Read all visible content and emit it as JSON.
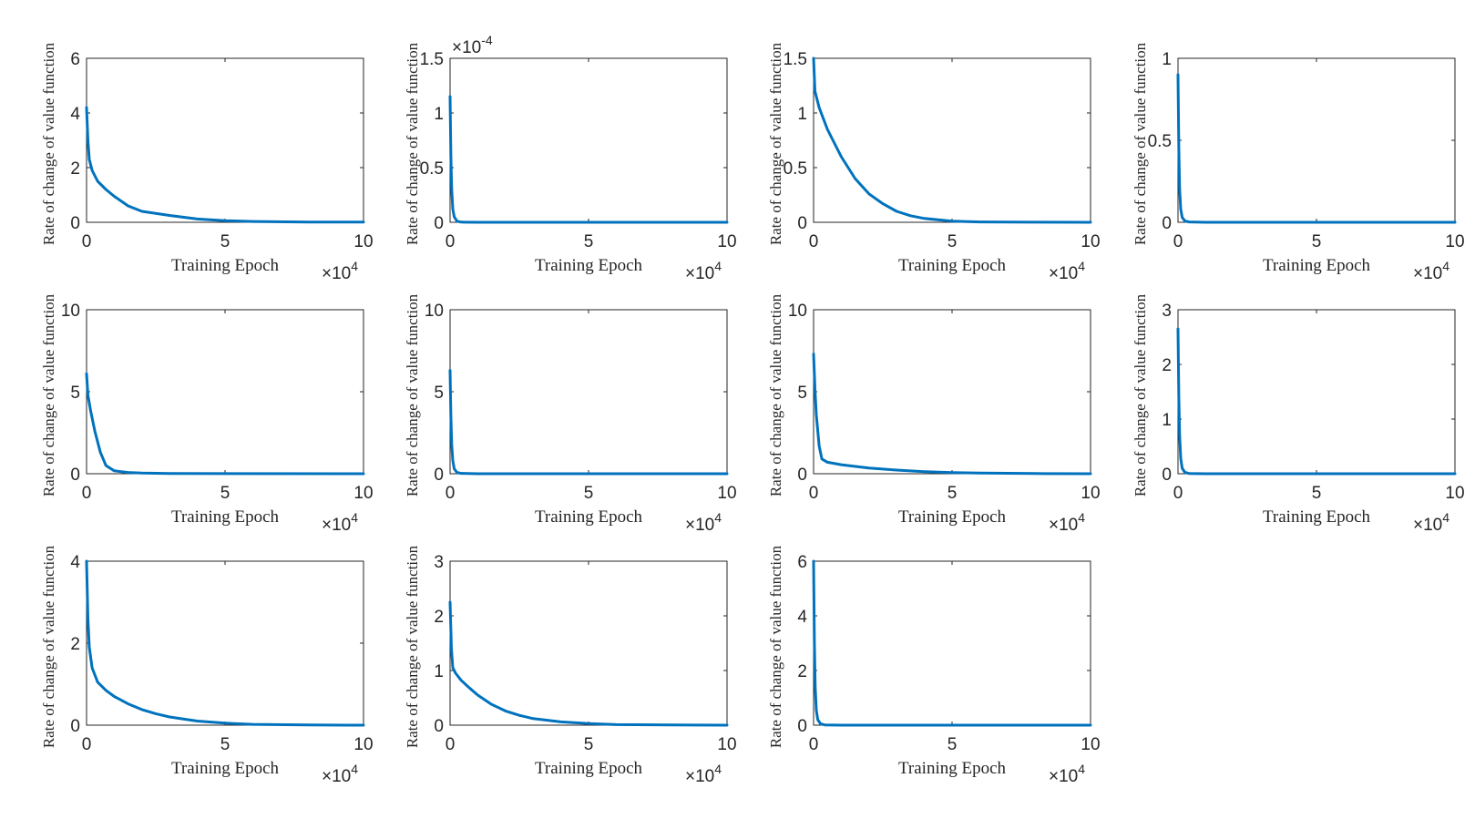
{
  "figure": {
    "line_color": "#0072BD",
    "axis_color": "#262626",
    "background": "#ffffff"
  },
  "chart_data": [
    {
      "type": "line",
      "xlabel": "Training Epoch",
      "ylabel": "Rate of change of value function",
      "x_multiplier": "×10",
      "x_exponent": "4",
      "y_multiplier": "",
      "xlim": [
        0,
        10
      ],
      "ylim": [
        0,
        6
      ],
      "xticks": [
        "0",
        "5",
        "10"
      ],
      "yticks": [
        "0",
        "2",
        "4",
        "6"
      ],
      "series": [
        {
          "x": [
            0,
            0.05,
            0.1,
            0.2,
            0.4,
            0.7,
            1,
            1.5,
            2,
            3,
            4,
            5,
            6,
            8,
            10
          ],
          "y": [
            4.2,
            3.0,
            2.3,
            1.9,
            1.5,
            1.2,
            0.95,
            0.6,
            0.4,
            0.25,
            0.12,
            0.06,
            0.03,
            0.01,
            0.005
          ]
        }
      ]
    },
    {
      "type": "line",
      "xlabel": "Training Epoch",
      "ylabel": "Rate of change of value function",
      "x_multiplier": "×10",
      "x_exponent": "4",
      "y_multiplier": "×10",
      "y_exponent": "-4",
      "xlim": [
        0,
        10
      ],
      "ylim": [
        0,
        1.5
      ],
      "xticks": [
        "0",
        "5",
        "10"
      ],
      "yticks": [
        "0",
        "0.5",
        "1",
        "1.5"
      ],
      "series": [
        {
          "x": [
            0,
            0.03,
            0.06,
            0.1,
            0.15,
            0.25,
            0.4,
            1,
            10
          ],
          "y": [
            1.15,
            0.6,
            0.3,
            0.12,
            0.05,
            0.01,
            0.002,
            0.0,
            0.0
          ]
        }
      ]
    },
    {
      "type": "line",
      "xlabel": "Training Epoch",
      "ylabel": "Rate of change of value function",
      "x_multiplier": "×10",
      "x_exponent": "4",
      "y_multiplier": "",
      "xlim": [
        0,
        10
      ],
      "ylim": [
        0,
        1.5
      ],
      "xticks": [
        "0",
        "5",
        "10"
      ],
      "yticks": [
        "0",
        "0.5",
        "1",
        "1.5"
      ],
      "series": [
        {
          "x": [
            0,
            0.05,
            0.2,
            0.5,
            1,
            1.5,
            2,
            2.5,
            3,
            3.5,
            4,
            5,
            6,
            8,
            10
          ],
          "y": [
            1.5,
            1.2,
            1.05,
            0.85,
            0.6,
            0.4,
            0.26,
            0.17,
            0.1,
            0.06,
            0.035,
            0.01,
            0.003,
            0.001,
            0.0
          ]
        }
      ]
    },
    {
      "type": "line",
      "xlabel": "Training Epoch",
      "ylabel": "Rate of change of value function",
      "x_multiplier": "×10",
      "x_exponent": "4",
      "y_multiplier": "",
      "xlim": [
        0,
        10
      ],
      "ylim": [
        0,
        1
      ],
      "xticks": [
        "0",
        "5",
        "10"
      ],
      "yticks": [
        "0",
        "0.5",
        "1"
      ],
      "series": [
        {
          "x": [
            0,
            0.03,
            0.06,
            0.1,
            0.15,
            0.25,
            0.4,
            1,
            10
          ],
          "y": [
            0.9,
            0.45,
            0.2,
            0.08,
            0.03,
            0.008,
            0.002,
            0.0,
            0.0
          ]
        }
      ]
    },
    {
      "type": "line",
      "xlabel": "Training Epoch",
      "ylabel": "Rate of change of value function",
      "x_multiplier": "×10",
      "x_exponent": "4",
      "y_multiplier": "",
      "xlim": [
        0,
        10
      ],
      "ylim": [
        0,
        10
      ],
      "xticks": [
        "0",
        "5",
        "10"
      ],
      "yticks": [
        "0",
        "5",
        "10"
      ],
      "series": [
        {
          "x": [
            0,
            0.05,
            0.15,
            0.3,
            0.5,
            0.7,
            1,
            1.5,
            2,
            3,
            10
          ],
          "y": [
            6.1,
            4.8,
            3.8,
            2.6,
            1.3,
            0.5,
            0.18,
            0.08,
            0.04,
            0.01,
            0.0
          ]
        }
      ]
    },
    {
      "type": "line",
      "xlabel": "Training Epoch",
      "ylabel": "Rate of change of value function",
      "x_multiplier": "×10",
      "x_exponent": "4",
      "y_multiplier": "",
      "xlim": [
        0,
        10
      ],
      "ylim": [
        0,
        10
      ],
      "xticks": [
        "0",
        "5",
        "10"
      ],
      "yticks": [
        "0",
        "5",
        "10"
      ],
      "series": [
        {
          "x": [
            0,
            0.03,
            0.06,
            0.1,
            0.15,
            0.25,
            0.4,
            1,
            10
          ],
          "y": [
            6.3,
            3.5,
            1.8,
            0.8,
            0.3,
            0.08,
            0.02,
            0.0,
            0.0
          ]
        }
      ]
    },
    {
      "type": "line",
      "xlabel": "Training Epoch",
      "ylabel": "Rate of change of value function",
      "x_multiplier": "×10",
      "x_exponent": "4",
      "y_multiplier": "",
      "xlim": [
        0,
        10
      ],
      "ylim": [
        0,
        10
      ],
      "xticks": [
        "0",
        "5",
        "10"
      ],
      "yticks": [
        "0",
        "5",
        "10"
      ],
      "series": [
        {
          "x": [
            0,
            0.05,
            0.1,
            0.2,
            0.3,
            0.5,
            1,
            2,
            3,
            4,
            5,
            6,
            8,
            10
          ],
          "y": [
            7.3,
            5.2,
            3.6,
            1.7,
            0.9,
            0.7,
            0.55,
            0.35,
            0.22,
            0.13,
            0.07,
            0.04,
            0.01,
            0.0
          ]
        }
      ]
    },
    {
      "type": "line",
      "xlabel": "Training Epoch",
      "ylabel": "Rate of change of value function",
      "x_multiplier": "×10",
      "x_exponent": "4",
      "y_multiplier": "",
      "xlim": [
        0,
        10
      ],
      "ylim": [
        0,
        3
      ],
      "xticks": [
        "0",
        "5",
        "10"
      ],
      "yticks": [
        "0",
        "1",
        "2",
        "3"
      ],
      "series": [
        {
          "x": [
            0,
            0.03,
            0.06,
            0.1,
            0.15,
            0.25,
            0.4,
            1,
            10
          ],
          "y": [
            2.65,
            1.4,
            0.7,
            0.28,
            0.1,
            0.025,
            0.005,
            0.0,
            0.0
          ]
        }
      ]
    },
    {
      "type": "line",
      "xlabel": "Training Epoch",
      "ylabel": "Rate of change of value function",
      "x_multiplier": "×10",
      "x_exponent": "4",
      "y_multiplier": "",
      "xlim": [
        0,
        10
      ],
      "ylim": [
        0,
        4
      ],
      "xticks": [
        "0",
        "5",
        "10"
      ],
      "yticks": [
        "0",
        "2",
        "4"
      ],
      "series": [
        {
          "x": [
            0,
            0.05,
            0.1,
            0.2,
            0.4,
            0.7,
            1,
            1.5,
            2,
            2.5,
            3,
            4,
            5,
            6,
            8,
            10
          ],
          "y": [
            4.0,
            2.6,
            1.9,
            1.4,
            1.05,
            0.85,
            0.7,
            0.52,
            0.38,
            0.28,
            0.2,
            0.1,
            0.05,
            0.02,
            0.005,
            0.0
          ]
        }
      ]
    },
    {
      "type": "line",
      "xlabel": "Training Epoch",
      "ylabel": "Rate of change of value function",
      "x_multiplier": "×10",
      "x_exponent": "4",
      "y_multiplier": "",
      "xlim": [
        0,
        10
      ],
      "ylim": [
        0,
        3
      ],
      "xticks": [
        "0",
        "5",
        "10"
      ],
      "yticks": [
        "0",
        "1",
        "2",
        "3"
      ],
      "series": [
        {
          "x": [
            0,
            0.05,
            0.1,
            0.2,
            0.4,
            0.7,
            1,
            1.5,
            2,
            2.5,
            3,
            4,
            5,
            6,
            8,
            10
          ],
          "y": [
            2.25,
            1.4,
            1.05,
            0.95,
            0.82,
            0.68,
            0.55,
            0.38,
            0.26,
            0.18,
            0.12,
            0.06,
            0.03,
            0.01,
            0.003,
            0.0
          ]
        }
      ]
    },
    {
      "type": "line",
      "xlabel": "Training Epoch",
      "ylabel": "Rate of change of value function",
      "x_multiplier": "×10",
      "x_exponent": "4",
      "y_multiplier": "",
      "xlim": [
        0,
        10
      ],
      "ylim": [
        0,
        6
      ],
      "xticks": [
        "0",
        "5",
        "10"
      ],
      "yticks": [
        "0",
        "2",
        "4",
        "6"
      ],
      "series": [
        {
          "x": [
            0,
            0.03,
            0.06,
            0.1,
            0.15,
            0.25,
            0.4,
            1,
            10
          ],
          "y": [
            6.0,
            3.0,
            1.4,
            0.55,
            0.2,
            0.05,
            0.01,
            0.0,
            0.0
          ]
        }
      ]
    }
  ]
}
